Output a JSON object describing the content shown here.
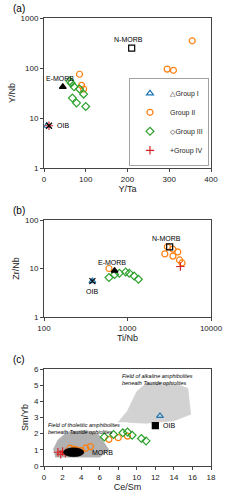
{
  "chart_data": [
    {
      "type": "scatter",
      "title": "(a)",
      "xlabel": "Y/Ta",
      "ylabel": "Y/Nb",
      "log": "y",
      "xlim": [
        0,
        400
      ],
      "ylim": [
        1,
        1000
      ],
      "xticks": [
        0,
        100,
        200,
        300,
        400
      ],
      "yticks": [
        1,
        10,
        100,
        1000
      ],
      "grid": false,
      "legend": "lower right",
      "series": [
        {
          "name": "△Group I",
          "marker": "triangle-up-open",
          "x": [
            7
          ],
          "values": [
            7
          ]
        },
        {
          "name": "Group II",
          "marker": "circle-open",
          "x": [
            310,
            355,
            295,
            85,
            90,
            95
          ],
          "values": [
            90,
            350,
            95,
            75,
            45,
            38
          ]
        },
        {
          "name": "◇Group III",
          "marker": "diamond-open",
          "x": [
            65,
            72,
            85,
            95,
            62,
            68,
            78,
            100
          ],
          "values": [
            50,
            42,
            38,
            30,
            55,
            25,
            20,
            17
          ]
        },
        {
          "name": "+Group IV",
          "marker": "cross-thin-open",
          "x": [
            12
          ],
          "values": [
            7
          ]
        },
        {
          "marker": "square-open",
          "color": "#000000",
          "x": [
            210
          ],
          "values": [
            250
          ]
        },
        {
          "marker": "triangle-up",
          "color": "#000000",
          "x": [
            45
          ],
          "values": [
            42
          ]
        },
        {
          "marker": "x-thin-open",
          "color": "#000000",
          "x": [
            12
          ],
          "values": [
            7
          ]
        }
      ],
      "annotations": [
        {
          "text": "N-MORB",
          "x": 210,
          "y": 250
        },
        {
          "text": "E-MORB",
          "x": 45,
          "y": 42
        },
        {
          "text": "OIB",
          "x": 12,
          "y": 7
        }
      ]
    },
    {
      "type": "scatter",
      "title": "(b)",
      "xlabel": "Ti/Nb",
      "ylabel": "Zr/Nb",
      "log": true,
      "xlim": [
        100,
        10000
      ],
      "ylim": [
        1,
        100
      ],
      "xticks": [
        100,
        1000,
        10000
      ],
      "yticks": [
        1,
        10,
        100
      ],
      "grid": false,
      "series": [
        {
          "marker": "triangle-up-open",
          "x": [
            380
          ],
          "values": [
            5.5
          ]
        },
        {
          "marker": "circle-open",
          "x": [
            3000,
            3500,
            4000,
            2800,
            3500,
            4200,
            4500,
            600
          ],
          "values": [
            28,
            25,
            22,
            20,
            18,
            15,
            13,
            10
          ]
        },
        {
          "marker": "diamond-open",
          "x": [
            600,
            700,
            800,
            950,
            1050,
            1200,
            1350
          ],
          "values": [
            6.5,
            7.5,
            8,
            8.5,
            8,
            7,
            6
          ]
        },
        {
          "marker": "cross-thin-open",
          "x": [
            4300
          ],
          "values": [
            11
          ]
        },
        {
          "marker": "square-open",
          "color": "#000000",
          "x": [
            3200
          ],
          "values": [
            28
          ]
        },
        {
          "marker": "triangle-up",
          "color": "#000000",
          "x": [
            700
          ],
          "values": [
            9
          ]
        },
        {
          "marker": "x-thin-open",
          "color": "#000000",
          "x": [
            380
          ],
          "values": [
            5.5
          ]
        }
      ],
      "annotations": [
        {
          "text": "N-MORB",
          "x": 3200,
          "y": 28
        },
        {
          "text": "E-MORB",
          "x": 700,
          "y": 9
        },
        {
          "text": "OIB",
          "x": 380,
          "y": 5.5
        }
      ]
    },
    {
      "type": "scatter",
      "title": "(c)",
      "xlabel": "Ce/Sm",
      "ylabel": "Sm/Yb",
      "xlim": [
        0,
        18
      ],
      "ylim": [
        0,
        6
      ],
      "xticks": [
        0,
        2,
        4,
        6,
        8,
        10,
        12,
        14,
        16,
        18
      ],
      "yticks": [
        0,
        1,
        2,
        3,
        4,
        5,
        6
      ],
      "grid": false,
      "series": [
        {
          "type": "polygon",
          "color": "#888888",
          "x": [
            1.2,
            6.0,
            7.0,
            5.8,
            4.5,
            2.5,
            1.5,
            1.0
          ],
          "values": [
            0.55,
            0.55,
            1.0,
            2.0,
            2.2,
            2.1,
            1.6,
            1.0
          ]
        },
        {
          "type": "polygon",
          "color": "#bbbbbb",
          "x": [
            8.0,
            9.0,
            10.0,
            11.0,
            12.5,
            14.5,
            15.5,
            15.8,
            14.0,
            11.0,
            9.0
          ],
          "values": [
            2.7,
            3.4,
            4.6,
            5.1,
            5.2,
            5.0,
            4.8,
            3.2,
            2.8,
            2.65,
            2.7
          ]
        },
        {
          "marker": "triangle-up-open",
          "x": [
            12.5
          ],
          "values": [
            3.1
          ]
        },
        {
          "marker": "circle-open",
          "x": [
            2.8,
            3.2,
            3.5,
            4.0,
            4.5,
            7.0,
            8.0,
            9.0,
            5.0
          ],
          "values": [
            1.1,
            1.05,
            1.0,
            0.95,
            1.1,
            1.65,
            1.75,
            1.85,
            1.2
          ]
        },
        {
          "marker": "diamond-open",
          "x": [
            6.5,
            7.5,
            8.5,
            9.5,
            10.5,
            11.0,
            9.0
          ],
          "values": [
            1.8,
            1.95,
            2.05,
            1.9,
            1.7,
            1.55,
            2.1
          ]
        },
        {
          "marker": "cross-thin-open",
          "x": [
            1.5,
            2.0,
            2.3,
            1.8
          ],
          "values": [
            0.85,
            0.9,
            0.8,
            0.72
          ]
        },
        {
          "marker": "square",
          "color": "#000000",
          "x": [
            12.0
          ],
          "values": [
            2.5
          ]
        },
        {
          "type": "ellipse",
          "color": "#000000",
          "x": [
            3.2
          ],
          "values": [
            0.85
          ],
          "width": [
            2.2
          ],
          "height": [
            0.55
          ]
        }
      ],
      "annotations": [
        {
          "text": "OIB",
          "x": 12.0,
          "y": 2.5
        },
        {
          "text": "MORB",
          "x": 4.3,
          "y": 0.85
        },
        {
          "text": "Field of alkaline amphibolites\nbeneath Tauride ophiolites",
          "x": 8.2,
          "y": 5.85
        },
        {
          "text": "Field of tholeiitic amphibolites\nbeneath Tauride ophiolites",
          "x": 0.2,
          "y": 2.85
        }
      ]
    }
  ]
}
